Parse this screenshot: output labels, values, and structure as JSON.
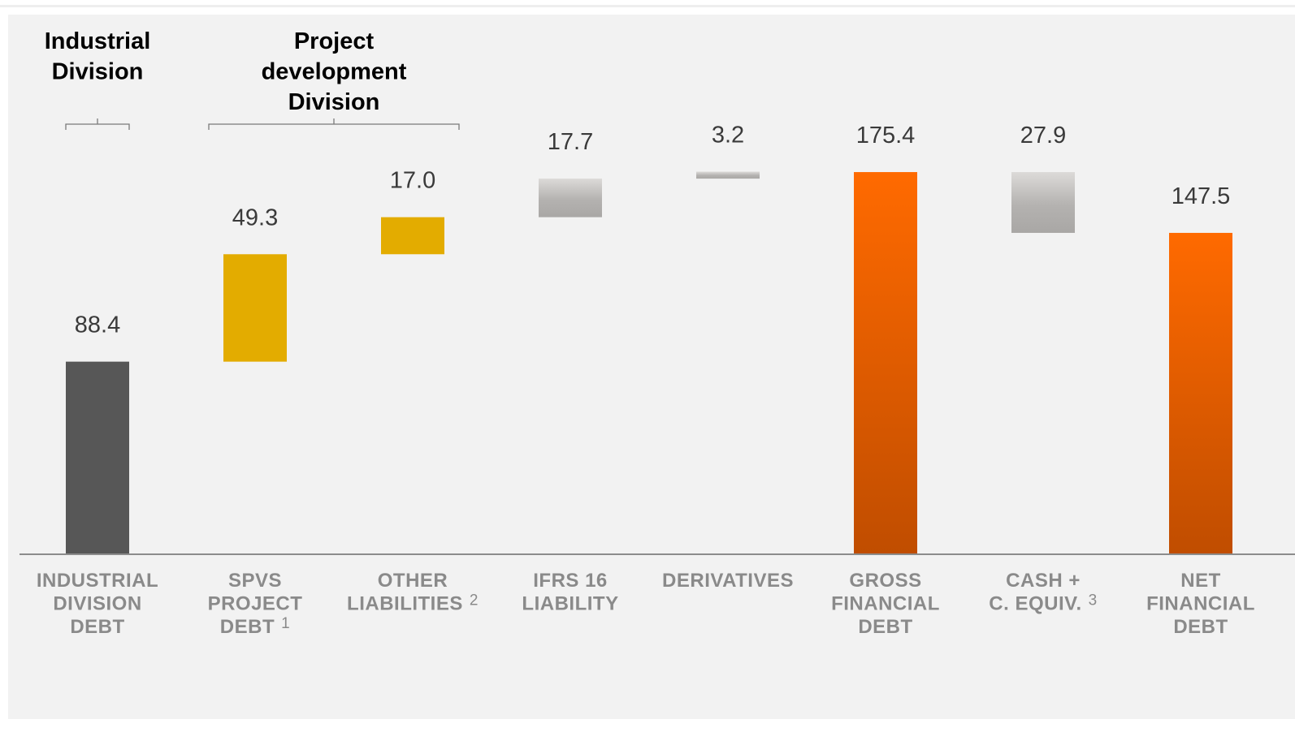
{
  "colors": {
    "background": "#f2f2f2",
    "industrial": "#575757",
    "project": "#e3ac00",
    "other": "#b8b6b4",
    "total_top": "#ff6a00",
    "total_bottom": "#c04d00",
    "axis": "#8c8c8c",
    "labels": "#8a8a8a",
    "values": "#3a3a3a"
  },
  "groups": [
    {
      "name": "industrial-division-header",
      "lines": [
        "Industrial",
        "Division"
      ],
      "span": [
        0,
        0
      ]
    },
    {
      "name": "project-division-header",
      "lines": [
        "Project",
        "development",
        "Division"
      ],
      "span": [
        1,
        2
      ]
    }
  ],
  "chart_data": {
    "type": "bar",
    "subtype": "waterfall",
    "title": "",
    "xlabel": "",
    "ylabel": "",
    "ylim": [
      0,
      200
    ],
    "grid": false,
    "legend": "none",
    "bars": [
      {
        "key": "industrial",
        "label_lines": [
          "INDUSTRIAL",
          "DIVISION",
          "DEBT"
        ],
        "superscript": "",
        "value_label": "88.4",
        "base": 0,
        "top": 88.4,
        "style": "industrial"
      },
      {
        "key": "spvs",
        "label_lines": [
          "SPVS",
          "PROJECT",
          "DEBT"
        ],
        "superscript": "1",
        "value_label": "49.3",
        "base": 88.4,
        "top": 137.7,
        "style": "project"
      },
      {
        "key": "other-liabilities",
        "label_lines": [
          "OTHER",
          "LIABILITIES"
        ],
        "superscript": "2",
        "value_label": "17.0",
        "base": 137.7,
        "top": 154.7,
        "style": "project"
      },
      {
        "key": "ifrs16",
        "label_lines": [
          "IFRS 16",
          "LIABILITY"
        ],
        "superscript": "",
        "value_label": "17.7",
        "base": 154.7,
        "top": 172.4,
        "style": "other"
      },
      {
        "key": "derivatives",
        "label_lines": [
          "DERIVATIVES"
        ],
        "superscript": "",
        "value_label": "3.2",
        "base": 172.4,
        "top": 175.6,
        "style": "other"
      },
      {
        "key": "gross",
        "label_lines": [
          "GROSS",
          "FINANCIAL",
          "DEBT"
        ],
        "superscript": "",
        "value_label": "175.4",
        "base": 0,
        "top": 175.4,
        "style": "total"
      },
      {
        "key": "cash",
        "label_lines": [
          "CASH +",
          "C. EQUIV."
        ],
        "superscript": "3",
        "value_label": "27.9",
        "base": 147.5,
        "top": 175.4,
        "style": "other"
      },
      {
        "key": "net",
        "label_lines": [
          "NET",
          "FINANCIAL",
          "DEBT"
        ],
        "superscript": "",
        "value_label": "147.5",
        "base": 0,
        "top": 147.5,
        "style": "total"
      }
    ]
  }
}
